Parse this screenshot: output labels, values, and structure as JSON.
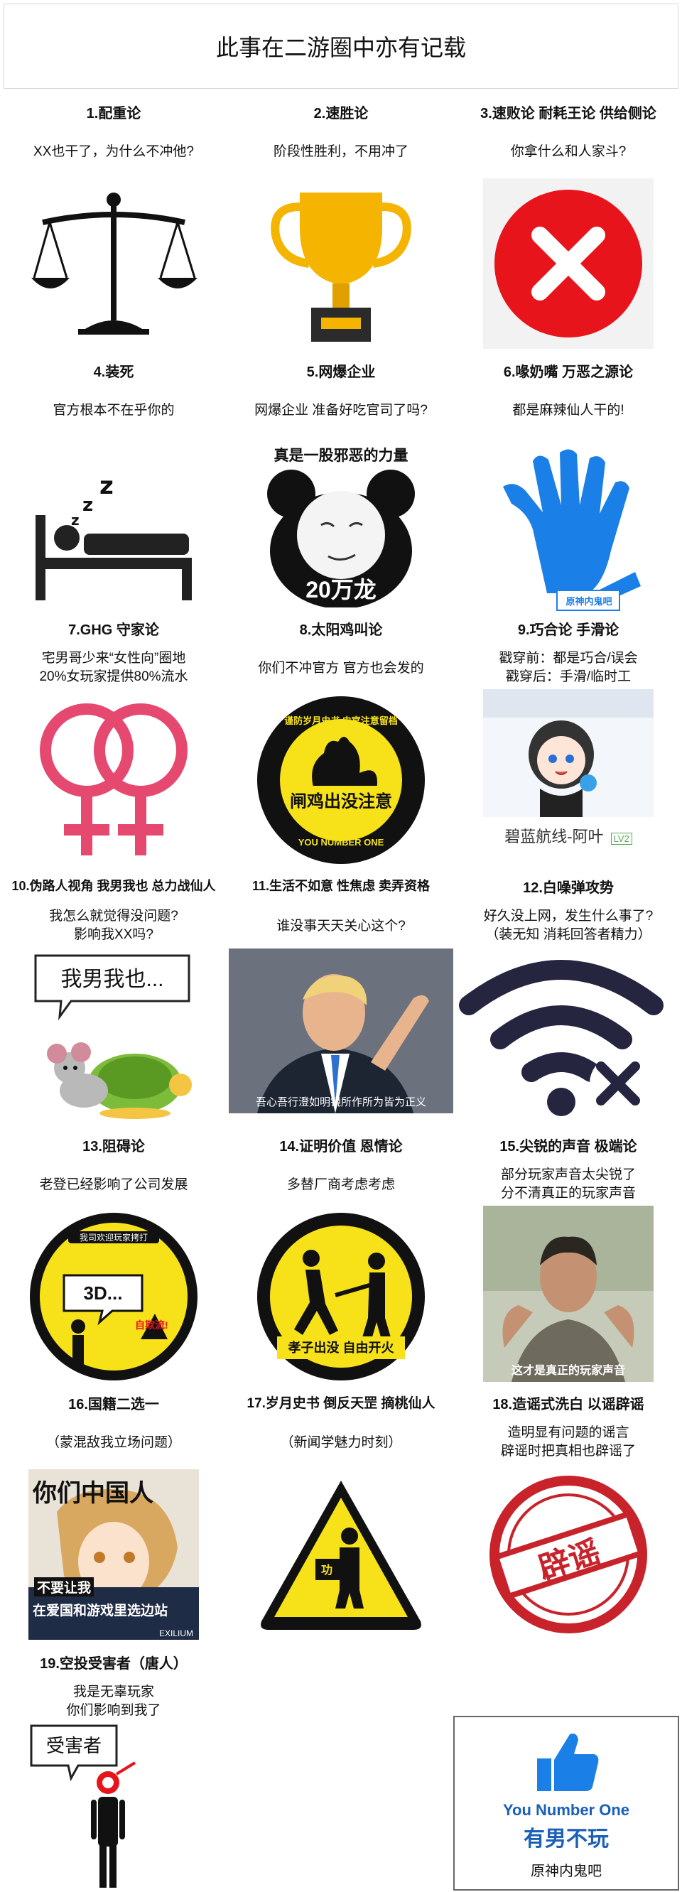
{
  "title": "此事在二游圈中亦有记载",
  "items": [
    {
      "heading": "1.配重论",
      "caption": "XX也干了，为什么不冲他?",
      "icon": "scale-icon"
    },
    {
      "heading": "2.速胜论",
      "caption": "阶段性胜利，不用冲了",
      "icon": "trophy-icon"
    },
    {
      "heading": "3.速败论 耐耗王论 供给侧论",
      "caption": "你拿什么和人家斗?",
      "icon": "red-x-icon"
    },
    {
      "heading": "4.装死",
      "caption": "官方根本不在乎你的",
      "icon": "sleeping-person-icon"
    },
    {
      "heading": "5.网爆企业",
      "caption": "网爆企业 准备好吃官司了吗?",
      "icon": "panda-meme",
      "extra_top": "真是一股邪恶的力量",
      "extra_bottom": "20万龙"
    },
    {
      "heading": "6.喙奶嘴 万恶之源论",
      "caption": "都是麻辣仙人干的!",
      "icon": "blue-hand-icon",
      "badge": "原神内鬼吧"
    },
    {
      "heading": "7.GHG 守家论",
      "caption_lines": [
        "宅男哥少来“女性向”圈地",
        "20%女玩家提供80%流水"
      ],
      "icon": "double-female-icon"
    },
    {
      "heading": "8.太阳鸡叫论",
      "caption": "你们不冲官方 官方也会发的",
      "icon": "rooster-sign-icon",
      "sign_top": "谨防岁月史书 史官注意留档",
      "sign_mid": "闸鸡出没注意",
      "sign_bottom": "YOU NUMBER ONE"
    },
    {
      "heading": "9.巧合论 手滑论",
      "caption_lines": [
        "戳穿前：都是巧合/误会",
        "戳穿后：手滑/临时工"
      ],
      "icon": "anime-avatar",
      "label": "碧蓝航线-阿叶",
      "lv": "LV2"
    },
    {
      "heading": "10.伪路人视角 我男我也 总力战仙人",
      "caption_lines": [
        "我怎么就觉得没问题?",
        "影响我XX吗?"
      ],
      "icon": "mouse-turtle-icon",
      "bubble": "我男我也..."
    },
    {
      "heading": "11.生活不如意 性焦虑 卖弄资格",
      "caption": "谁没事天天关心这个?",
      "icon": "pointing-man-photo",
      "subtitle": "吾心吾行澄如明镜所作所为皆为正义"
    },
    {
      "heading": "12.白噪弹攻势",
      "caption_lines": [
        "好久没上网，发生什么事了?",
        "（装无知 消耗回答者精力）"
      ],
      "icon": "no-wifi-icon"
    },
    {
      "heading": "13.阻碍论",
      "caption": "老登已经影响了公司发展",
      "icon": "warning-sign-icon",
      "sign_top": "我司欢迎玩家拷打",
      "bubble": "3D...",
      "tag": "自欺流!"
    },
    {
      "heading": "14.证明价值 恩情论",
      "caption": "多替厂商考虑考虑",
      "icon": "shooting-sign-icon",
      "sign_bottom": "孝子出没 自由开火"
    },
    {
      "heading": "15.尖锐的声音 极端论",
      "caption_lines": [
        "部分玩家声音太尖锐了",
        "分不清真正的玩家声音"
      ],
      "icon": "shrugging-man-photo",
      "subtitle": "这才是真正的玩家声音"
    },
    {
      "heading": "16.国籍二选一",
      "caption": "（蒙混敌我立场问题）",
      "icon": "anime-poster",
      "poster_top": "你们中国人",
      "poster_line1": "不要让我",
      "poster_line2": "在爱国和游戏里选边站",
      "brand": "EXILIUM"
    },
    {
      "heading": "17.岁月史书 倒反天罡 摘桃仙人",
      "caption": "（新闻学魅力时刻）",
      "icon": "triangle-warning-icon",
      "tag": "功"
    },
    {
      "heading": "18.造谣式洗白 以谣辟谣",
      "caption_lines": [
        "造明显有问题的谣言",
        "辟谣时把真相也辟谣了"
      ],
      "icon": "stamp-icon",
      "stamp": "辟谣"
    },
    {
      "heading": "19.空投受害者（唐人）",
      "caption_lines": [
        "我是无辜玩家",
        "你们影响到我了"
      ],
      "icon": "victim-figure-icon",
      "bubble": "受害者"
    }
  ],
  "box": {
    "line1": "You Number One",
    "line2": "有男不玩",
    "line3": "原神内鬼吧",
    "icon": "thumbs-up-icon"
  },
  "colors": {
    "red": "#e8141c",
    "yellow": "#f7e21a",
    "blue": "#1b7fe8",
    "pink": "#e6496f",
    "gold": "#f4b400"
  }
}
